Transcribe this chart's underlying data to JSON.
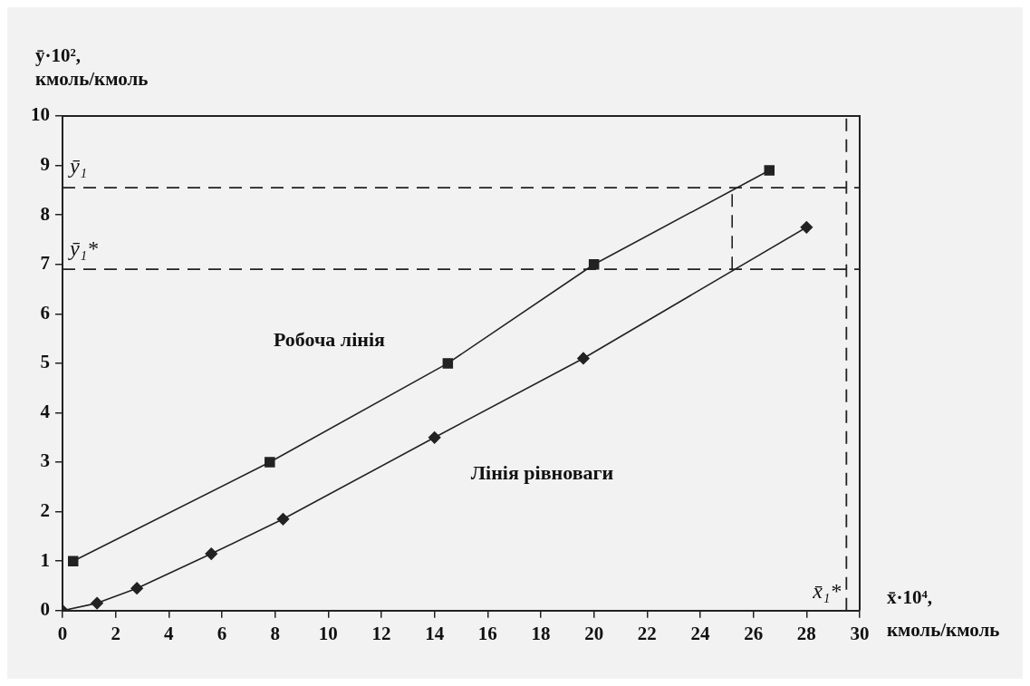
{
  "chart_data": {
    "type": "line",
    "xlabel": "x̄·10⁴, кмоль/кмоль",
    "ylabel": "ȳ·10², кмоль/кмоль",
    "xlim": [
      0,
      30
    ],
    "xticks": [
      0,
      2,
      4,
      6,
      8,
      10,
      12,
      14,
      16,
      18,
      20,
      22,
      24,
      26,
      28,
      30
    ],
    "ylim": [
      0,
      10
    ],
    "yticks": [
      0,
      1,
      2,
      3,
      4,
      5,
      6,
      7,
      8,
      9,
      10
    ],
    "grid": false,
    "legend": false,
    "line_style": "solid",
    "series": [
      {
        "name": "Робоча лінія",
        "color": "#222222",
        "marker": "square",
        "x": [
          0.4,
          7.8,
          14.5,
          20.0,
          26.6
        ],
        "values": [
          1.0,
          3.0,
          5.0,
          7.0,
          8.9
        ]
      },
      {
        "name": "Лінія рівноваги",
        "color": "#222222",
        "marker": "diamond",
        "x": [
          0,
          1.3,
          2.8,
          5.6,
          8.3,
          14.0,
          19.6,
          28.0
        ],
        "values": [
          0,
          0.15,
          0.45,
          1.15,
          1.85,
          3.5,
          5.1,
          7.75
        ]
      },
      {
        "color": "#222222",
        "marker": "none",
        "line_style": "dashed",
        "x": [
          25.2,
          25.2
        ],
        "values": [
          6.9,
          8.55
        ]
      }
    ],
    "ref_lines": [
      {
        "axis": "y",
        "value": 8.55,
        "label": "ȳ₁",
        "line_style": "dashed"
      },
      {
        "axis": "y",
        "value": 6.9,
        "label": "ȳ₁*",
        "line_style": "dashed"
      },
      {
        "axis": "x",
        "value": 29.5,
        "label": "x̄₁*",
        "line_style": "dashed"
      }
    ]
  }
}
